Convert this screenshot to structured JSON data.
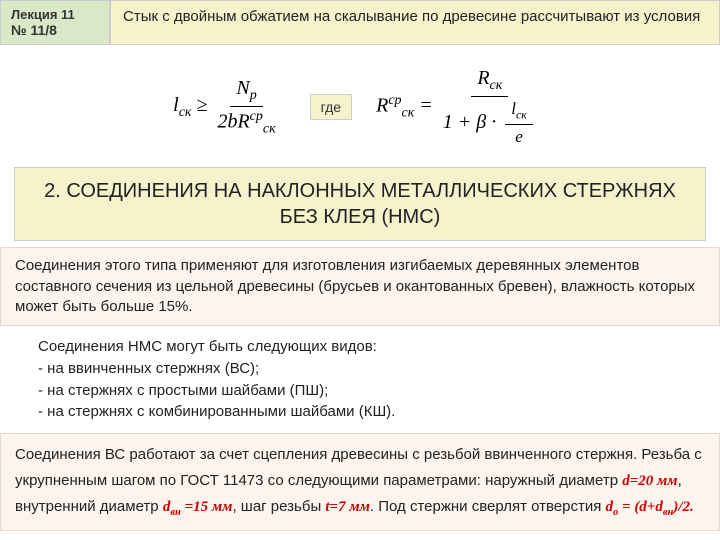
{
  "lecture": {
    "title": "Лекция 11",
    "number": "№ 11/8"
  },
  "topic": "Стык с двойным обжатием на скалывание по древесине рассчитывают из условия",
  "where_label": "где",
  "section_title": "2. СОЕДИНЕНИЯ   НА НАКЛОННЫХ МЕТАЛЛИЧЕСКИХ СТЕРЖНЯХ БЕЗ КЛЕЯ (НМС)",
  "para1": "Соединения этого типа  применяют для изготовления изгибаемых деревянных элементов составного сечения из цельной древесины (брусьев и окантованных бревен), влажность которых может быть больше 15%.",
  "para2_lead": "Соединения НМС могут быть следующих видов:",
  "para2_items": [
    "- на ввинченных стержнях (ВС);",
    "- на стержнях с простыми шайбами (ПШ);",
    "- на стержнях с комбинированными шайбами (КШ)."
  ],
  "para3_parts": {
    "s1": "Соединения ВС работают за счет сцепления древесины с резьбой ввинченного стержня. Резьба с укрупненным шагом по ГОСТ 11473 со следующими параметрами: наружный диаметр ",
    "d1": "d=20 мм",
    "s2": ", внутренний диаметр ",
    "d2_sym": "d",
    "d2_sub": "вн",
    "d2_val": " =15 мм",
    "s3": ", шаг резьбы ",
    "t1": "t=7 мм",
    "s4": ". Под стержни сверлят отверстия  ",
    "do_sym": "d",
    "do_sub": "о",
    "do_eq": " = (d+d",
    "do_eq_sub": "вн",
    "do_end": ")/2."
  },
  "formula1": {
    "lhs": "l",
    "lhs_sub": "ск",
    "geq": " ≥ ",
    "num": "N",
    "num_sub": "p",
    "den_a": "2bR",
    "den_sup": "ср",
    "den_sub": "ск"
  },
  "formula2": {
    "lhs": "R",
    "lhs_sup": "ср",
    "lhs_sub": "ск",
    "eq": " = ",
    "num": "R",
    "num_sub": "ск",
    "den_a": "1 + β · ",
    "inner_num": "l",
    "inner_num_sub": "ск",
    "inner_den": "e"
  }
}
